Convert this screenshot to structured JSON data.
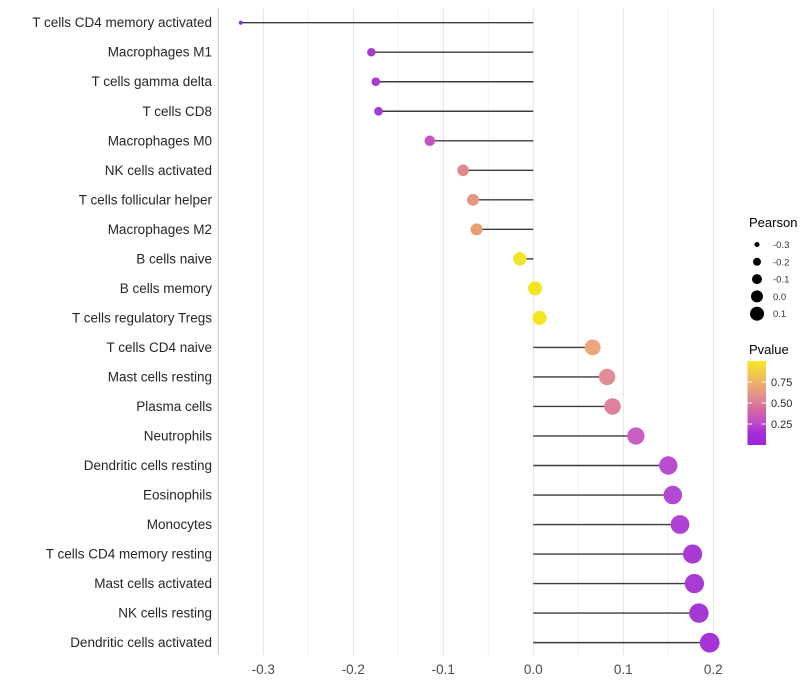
{
  "chart_data": {
    "type": "scatter",
    "subtype": "lollipop",
    "title": "",
    "xlabel": "",
    "ylabel": "",
    "xlim": [
      -0.35,
      0.235
    ],
    "grid": "on",
    "x_ticks": [
      -0.3,
      -0.2,
      -0.1,
      0.0,
      0.1,
      0.2
    ],
    "x_tick_labels": [
      "-0.3",
      "-0.2",
      "-0.1",
      "0.0",
      "0.1",
      "0.2"
    ],
    "x_minor_ticks": [
      -0.35,
      -0.25,
      -0.15,
      -0.05,
      0.05,
      0.15
    ],
    "categories": [
      "T cells CD4 memory activated",
      "Macrophages M1",
      "T cells gamma delta",
      "T cells CD8",
      "Macrophages M0",
      "NK cells activated",
      "T cells follicular helper",
      "Macrophages M2",
      "B cells naive",
      "B cells memory",
      "T cells regulatory  Tregs",
      "T cells CD4 naive",
      "Mast cells resting",
      "Plasma cells",
      "Neutrophils",
      "Dendritic cells resting",
      "Eosinophils",
      "Monocytes",
      "T cells CD4 memory resting",
      "Mast cells activated",
      "NK cells resting",
      "Dendritic cells activated"
    ],
    "series": [
      {
        "name": "Pearson",
        "values": [
          -0.325,
          -0.18,
          -0.175,
          -0.172,
          -0.115,
          -0.078,
          -0.067,
          -0.063,
          -0.015,
          0.002,
          0.007,
          0.066,
          0.082,
          0.088,
          0.114,
          0.15,
          0.155,
          0.163,
          0.177,
          0.179,
          0.184,
          0.196
        ]
      },
      {
        "name": "Pvalue (estimated from color scale)",
        "values": [
          0.05,
          0.1,
          0.1,
          0.1,
          0.28,
          0.5,
          0.58,
          0.62,
          0.88,
          0.92,
          0.92,
          0.65,
          0.52,
          0.48,
          0.3,
          0.18,
          0.16,
          0.14,
          0.11,
          0.11,
          0.1,
          0.09
        ]
      }
    ],
    "point_colors": [
      "#8b2fd2",
      "#a43cd2",
      "#a43cd2",
      "#a43cd2",
      "#c553c4",
      "#dd8a8c",
      "#e3977e",
      "#e7a072",
      "#f2e32c",
      "#f4e51e",
      "#f4e51e",
      "#eca87c",
      "#e18d96",
      "#dc8199",
      "#cb5ec3",
      "#b84ecf",
      "#b348d2",
      "#ad42d4",
      "#a83bd4",
      "#a83bd4",
      "#a637d5",
      "#a533d6"
    ],
    "stem_color": "#3b3b3b",
    "baseline_value": 0
  },
  "legend": {
    "position": "right",
    "size_legend": {
      "title": "Pearson",
      "entries": [
        {
          "label": "-0.3",
          "r": 2.5
        },
        {
          "label": "-0.2",
          "r": 4.0
        },
        {
          "label": "-0.1",
          "r": 5.0
        },
        {
          "label": "0.0",
          "r": 6.0
        },
        {
          "label": "0.1",
          "r": 7.0
        }
      ],
      "dot_color": "#000000"
    },
    "color_legend": {
      "title": "Pvalue",
      "tick_labels": [
        "0.75",
        "0.50",
        "0.25"
      ],
      "tick_values": [
        0.75,
        0.5,
        0.25
      ],
      "range": [
        0,
        1
      ],
      "gradient_top_to_bottom": [
        "#f9e721",
        "#f0c94d",
        "#eda86f",
        "#e18d92",
        "#d4699f",
        "#c050c5",
        "#a72cd6",
        "#9d24d8"
      ]
    }
  },
  "style": {
    "background": "#ffffff",
    "major_grid_color": "#e4e4e4",
    "minor_grid_color": "#f1f1f1",
    "axis_edge_color": "#c9c9c9",
    "label_color": "#262626",
    "tick_label_color": "#4a4a4a"
  }
}
